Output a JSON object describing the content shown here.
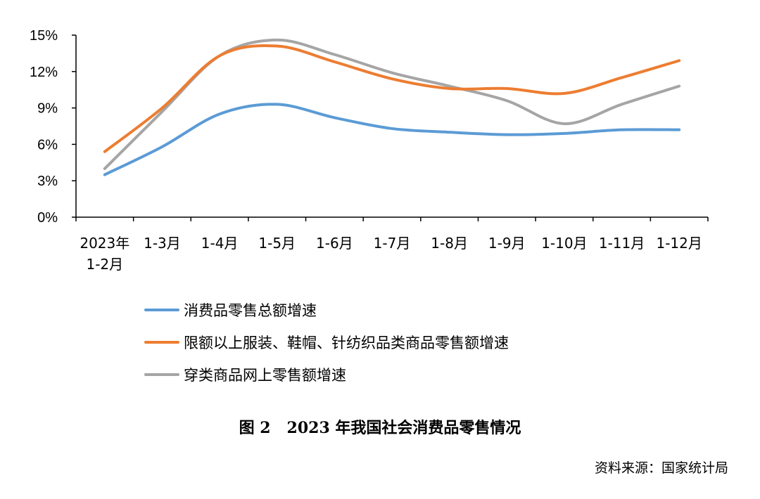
{
  "chart_data": {
    "type": "line",
    "categories": [
      "2023年\n1-2月",
      "1-3月",
      "1-4月",
      "1-5月",
      "1-6月",
      "1-7月",
      "1-8月",
      "1-9月",
      "1-10月",
      "1-11月",
      "1-12月"
    ],
    "ylim": [
      0,
      15
    ],
    "yticks": [
      0,
      3,
      6,
      9,
      12,
      15
    ],
    "ytick_labels": [
      "0%",
      "3%",
      "6%",
      "9%",
      "12%",
      "15%"
    ],
    "grid": false,
    "legend_position": "bottom",
    "series": [
      {
        "name": "消费品零售总额增速",
        "color": "#5B9BD5",
        "values": [
          3.5,
          5.8,
          8.5,
          9.3,
          8.2,
          7.3,
          7.0,
          6.8,
          6.9,
          7.2,
          7.2
        ]
      },
      {
        "name": "限额以上服装、鞋帽、针纺织品类商品零售额增速",
        "color": "#ED7D31",
        "values": [
          5.4,
          9.0,
          13.3,
          14.1,
          12.8,
          11.4,
          10.6,
          10.6,
          10.2,
          11.5,
          12.9
        ]
      },
      {
        "name": "穿类商品网上零售额增速",
        "color": "#A5A5A5",
        "values": [
          4.0,
          8.7,
          13.3,
          14.6,
          13.4,
          11.9,
          10.8,
          9.6,
          7.7,
          9.3,
          10.8
        ]
      }
    ]
  },
  "caption": "图 2   2023 年我国社会消费品零售情况",
  "source": "资料来源：国家统计局"
}
